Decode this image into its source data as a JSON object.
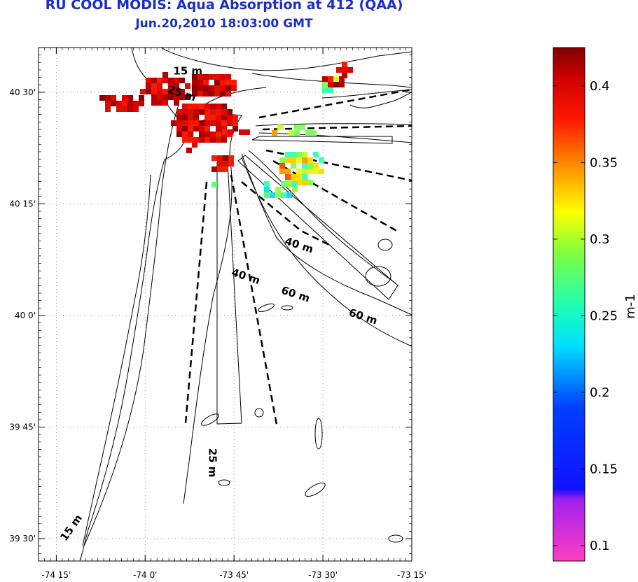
{
  "title": "RU COOL MODIS: Aqua Absorption at 412 (QAA)",
  "subtitle": "Jun.20,2010 18:03:00 GMT",
  "map": {
    "lon_range": [
      -74.3,
      -73.25
    ],
    "lat_range": [
      39.45,
      40.6
    ],
    "lon_ticks": [
      {
        "value": -74.25,
        "label": "-74 15'"
      },
      {
        "value": -74.0,
        "label": "-74 0'"
      },
      {
        "value": -73.75,
        "label": "-73 45'"
      },
      {
        "value": -73.5,
        "label": "-73 30'"
      },
      {
        "value": -73.25,
        "label": "-73 15'"
      }
    ],
    "lat_ticks": [
      {
        "value": 40.5,
        "label": "40 30'"
      },
      {
        "value": 40.25,
        "label": "40 15'"
      },
      {
        "value": 40.0,
        "label": "40 0'"
      },
      {
        "value": 39.75,
        "label": "39 45'"
      },
      {
        "value": 39.5,
        "label": "39 30'"
      }
    ],
    "grid": "dotted",
    "depth_labels": [
      {
        "text": "15 m",
        "lon": -73.88,
        "lat": 40.54
      },
      {
        "text": "25 m",
        "lon": -73.9,
        "lat": 40.49
      },
      {
        "text": "40 m",
        "lon": -73.57,
        "lat": 40.15
      },
      {
        "text": "40 m",
        "lon": -73.72,
        "lat": 40.08
      },
      {
        "text": "60 m",
        "lon": -73.58,
        "lat": 40.04
      },
      {
        "text": "60 m",
        "lon": -73.39,
        "lat": 39.99
      },
      {
        "text": "25 m",
        "lon": -73.82,
        "lat": 39.67
      },
      {
        "text": "15 m",
        "lon": -74.2,
        "lat": 39.52
      }
    ]
  },
  "colorbar": {
    "label": "m-1",
    "range": [
      0.09,
      0.425
    ],
    "ticks": [
      {
        "value": 0.4,
        "label": "0.4"
      },
      {
        "value": 0.35,
        "label": "0.35"
      },
      {
        "value": 0.3,
        "label": "0.3"
      },
      {
        "value": 0.25,
        "label": "0.25"
      },
      {
        "value": 0.2,
        "label": "0.2"
      },
      {
        "value": 0.15,
        "label": "0.15"
      },
      {
        "value": 0.1,
        "label": "0.1"
      }
    ]
  }
}
